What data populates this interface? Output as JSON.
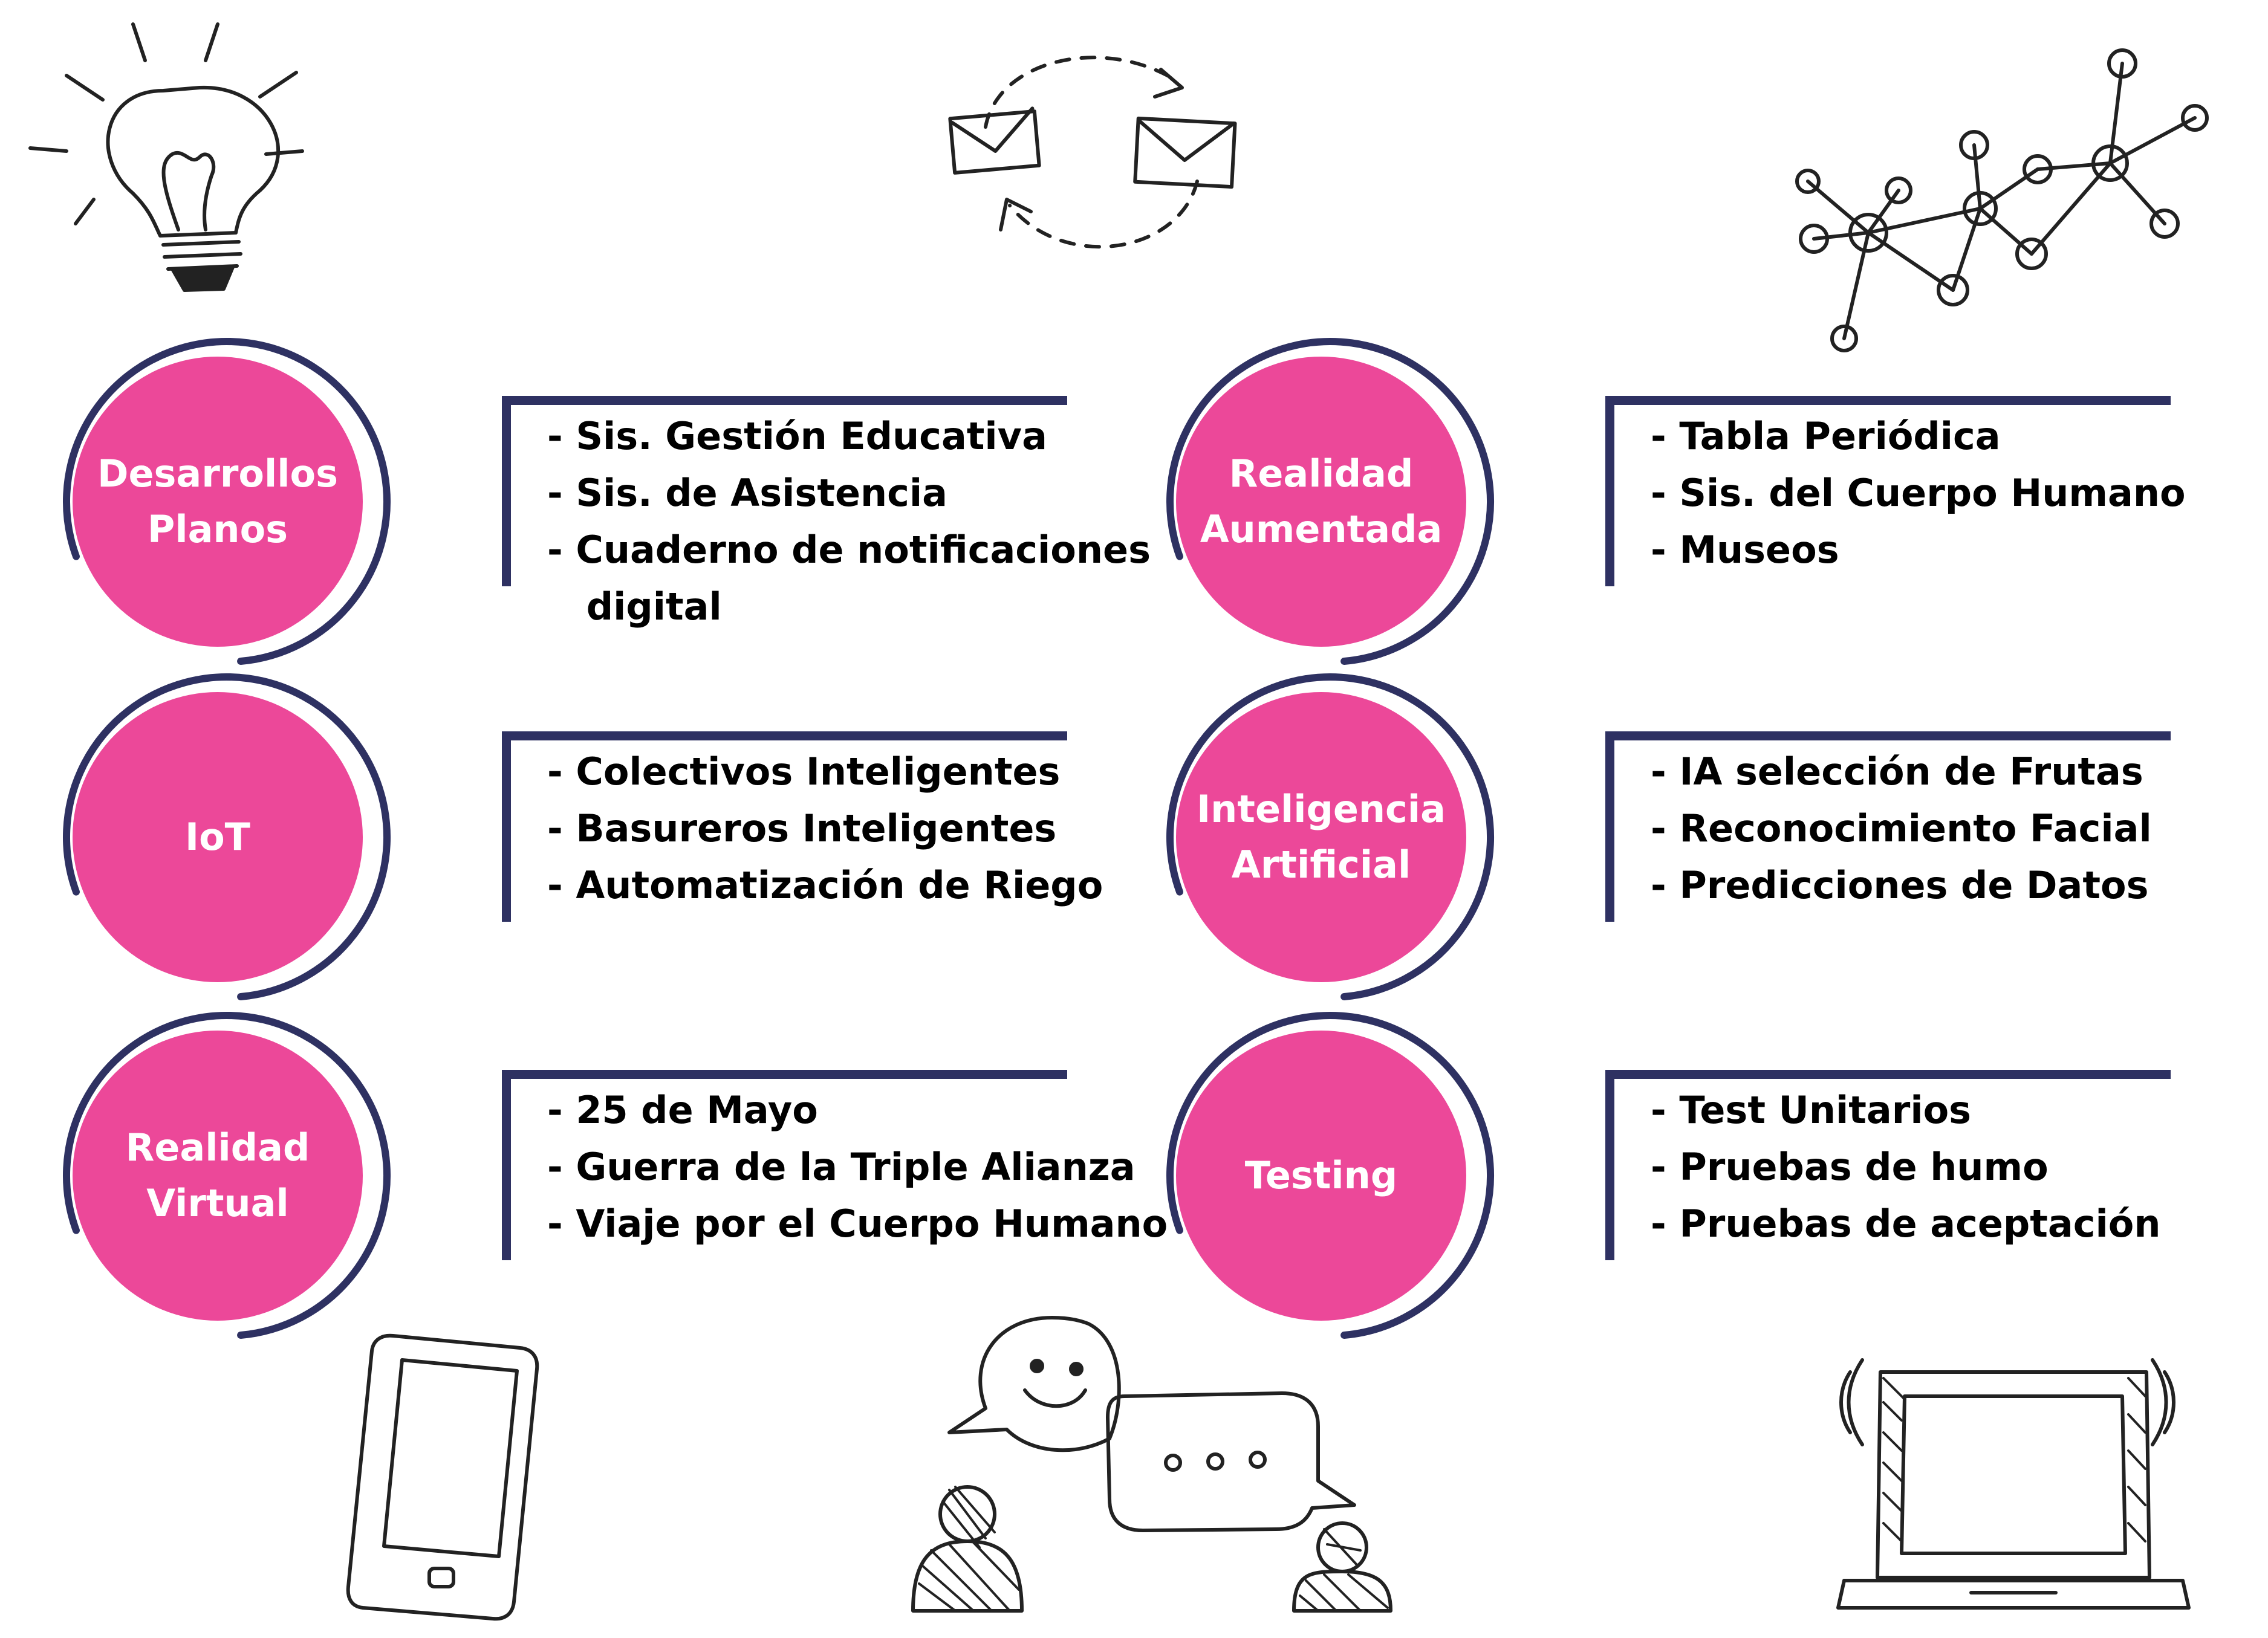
{
  "colors": {
    "circle": "#ec4899",
    "ring": "#2e3162",
    "bracket": "#2e3162",
    "text": "#000000",
    "circle_text": "#ffffff"
  },
  "icons": [
    "lightbulb-icon",
    "email-exchange-icon",
    "network-icon",
    "smartphone-icon",
    "chat-people-icon",
    "laptop-icon"
  ],
  "topics": [
    {
      "title": "Desarrollos\nPlanos",
      "items": [
        "- Sis. Gestión Educativa",
        "- Sis. de Asistencia",
        "- Cuaderno de notificaciones\n   digital"
      ]
    },
    {
      "title": "Realidad\nAumentada",
      "items": [
        "- Tabla Periódica",
        "- Sis. del Cuerpo Humano",
        "- Museos"
      ]
    },
    {
      "title": "IoT",
      "items": [
        "- Colectivos Inteligentes",
        "- Basureros Inteligentes",
        "- Automatización de Riego"
      ]
    },
    {
      "title": "Inteligencia\nArtificial",
      "items": [
        "- IA selección de Frutas",
        "- Reconocimiento Facial",
        "- Predicciones de Datos"
      ]
    },
    {
      "title": "Realidad\nVirtual",
      "items": [
        "- 25 de Mayo",
        "- Guerra de la Triple Alianza",
        "- Viaje por el Cuerpo Humano"
      ]
    },
    {
      "title": "Testing",
      "items": [
        "- Test Unitarios",
        "- Pruebas de humo",
        "- Pruebas de aceptación"
      ]
    }
  ]
}
